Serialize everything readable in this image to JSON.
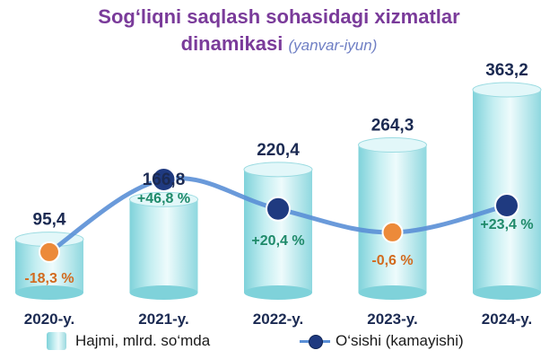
{
  "title": {
    "line1": "Sog‘liqni saqlash sohasidagi xizmatlar",
    "line2": "dinamikasi",
    "subtitle": "(yanvar-iyun)"
  },
  "legend": {
    "volume_label": "Hajmi, mlrd. so‘mda",
    "growth_label": "O‘sishi (kamayishi)"
  },
  "chart_data": {
    "type": "bar",
    "categories": [
      "2020-y.",
      "2021-y.",
      "2022-y.",
      "2023-y.",
      "2024-y."
    ],
    "series": [
      {
        "name": "Hajmi, mlrd. so‘mda",
        "kind": "cylinder-bar",
        "values": [
          95.4,
          166.8,
          220.4,
          264.3,
          363.2
        ],
        "labels": [
          "95,4",
          "166,8",
          "220,4",
          "264,3",
          "363,2"
        ]
      },
      {
        "name": "O‘sishi (kamayishi)",
        "kind": "line",
        "values": [
          -18.3,
          46.8,
          20.4,
          -0.6,
          23.4
        ],
        "labels": [
          "-18,3 %",
          "+46,8 %",
          "+20,4 %",
          "-0,6 %",
          "+23,4 %"
        ]
      }
    ],
    "colors": {
      "bar_light": "#eafafb",
      "bar_mid": "#b6e6ea",
      "bar_dark": "#7fd2da",
      "line": "#5a8fd6",
      "marker_positive": "#1f3a80",
      "marker_negative": "#ec8a3a",
      "label_negative": "#d26a1e",
      "label_positive": "#1f8a6a",
      "value_label": "#1b2a52",
      "category_label": "#1b2a52"
    },
    "grid": false,
    "legend_position": "bottom"
  }
}
